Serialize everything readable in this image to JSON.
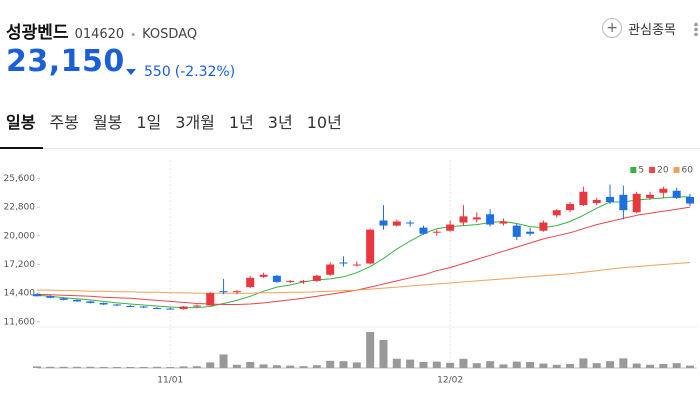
{
  "header": {
    "name": "성광벤드",
    "code": "014620",
    "market": "KOSDAQ",
    "favorite": "관심종목",
    "price": "23,150",
    "change": "550",
    "change_pct": "(-2.32%)"
  },
  "tabs": [
    "일봉",
    "주봉",
    "월봉",
    "1일",
    "3개월",
    "1년",
    "3년",
    "10년"
  ],
  "chart_data": {
    "type": "candlestick",
    "categories": [
      null,
      null,
      null,
      null,
      null,
      null,
      null,
      null,
      null,
      null,
      "11/01",
      null,
      null,
      null,
      null,
      null,
      null,
      null,
      null,
      null,
      null,
      null,
      null,
      null,
      null,
      null,
      null,
      null,
      null,
      null,
      null,
      "12/02",
      null,
      null,
      null,
      null,
      null,
      null,
      null,
      null,
      null,
      null,
      null,
      null,
      null,
      null,
      null,
      null,
      null,
      null
    ],
    "open": [
      14300,
      14100,
      13900,
      13750,
      13600,
      13450,
      13300,
      13150,
      13100,
      12950,
      12900,
      12850,
      13100,
      13200,
      14600,
      14500,
      15000,
      16000,
      16100,
      15500,
      15500,
      15600,
      16200,
      17400,
      17100,
      17300,
      21500,
      21000,
      21300,
      20800,
      20300,
      20500,
      21300,
      21600,
      22100,
      21200,
      21000,
      20400,
      20500,
      22000,
      22500,
      23000,
      23200,
      23800,
      24000,
      22300,
      23700,
      24200,
      24400,
      23800
    ],
    "high": [
      14400,
      14200,
      14000,
      13800,
      13650,
      13500,
      13350,
      13250,
      13150,
      13050,
      13000,
      13150,
      13300,
      14500,
      15800,
      14700,
      16100,
      16400,
      16200,
      15700,
      15700,
      16200,
      17400,
      18000,
      17500,
      20700,
      23000,
      21600,
      21500,
      21000,
      20600,
      21500,
      23000,
      22300,
      22600,
      21700,
      21200,
      20800,
      21500,
      22600,
      23300,
      24800,
      23700,
      25000,
      24900,
      24300,
      24300,
      24800,
      24700,
      24100
    ],
    "low": [
      14100,
      13900,
      13700,
      13550,
      13400,
      13250,
      13150,
      13050,
      12950,
      12850,
      12800,
      12800,
      13000,
      13200,
      14300,
      14300,
      14900,
      15900,
      15400,
      15400,
      15300,
      15500,
      16100,
      17000,
      17000,
      17200,
      20600,
      20900,
      20900,
      20100,
      20000,
      20400,
      21000,
      21300,
      20900,
      21000,
      19600,
      20000,
      20400,
      21800,
      22300,
      22900,
      23000,
      23100,
      21600,
      22200,
      23500,
      23700,
      23600,
      22900
    ],
    "close": [
      14100,
      13950,
      13750,
      13600,
      13450,
      13300,
      13200,
      13100,
      13000,
      12900,
      12850,
      13100,
      13200,
      14400,
      14500,
      14600,
      15900,
      16200,
      15500,
      15600,
      15600,
      16100,
      17200,
      17300,
      17200,
      20600,
      21000,
      21400,
      21200,
      20200,
      20400,
      21100,
      21900,
      21800,
      21100,
      21400,
      19900,
      20200,
      21300,
      22500,
      23100,
      24300,
      23500,
      23300,
      22500,
      24100,
      24000,
      24600,
      23700,
      23150
    ],
    "up_color": "#e8373e",
    "down_color": "#1e6fe0",
    "lines": [
      {
        "name": "5",
        "color": "#3cb043",
        "values": [
          14200,
          14100,
          13950,
          13850,
          13750,
          13600,
          13450,
          13350,
          13250,
          13150,
          13050,
          13000,
          13000,
          13100,
          13400,
          13700,
          14100,
          14600,
          15000,
          15200,
          15500,
          15700,
          15800,
          16000,
          16400,
          17000,
          17800,
          18700,
          19500,
          20200,
          20700,
          20900,
          21000,
          21100,
          21300,
          21400,
          21200,
          20900,
          20800,
          21000,
          21400,
          22000,
          22700,
          23300,
          23300,
          23500,
          23600,
          23700,
          23800,
          23800
        ]
      },
      {
        "name": "20",
        "color": "#e8474e",
        "values": [
          14300,
          14250,
          14200,
          14150,
          14100,
          14000,
          13950,
          13900,
          13800,
          13700,
          13600,
          13500,
          13400,
          13350,
          13300,
          13300,
          13350,
          13450,
          13600,
          13750,
          13900,
          14100,
          14300,
          14500,
          14700,
          15000,
          15300,
          15600,
          15900,
          16200,
          16600,
          16900,
          17300,
          17700,
          18100,
          18500,
          18900,
          19300,
          19700,
          20000,
          20300,
          20700,
          21100,
          21400,
          21700,
          22000,
          22200,
          22400,
          22600,
          22800
        ]
      },
      {
        "name": "60",
        "color": "#f0a05a",
        "values": [
          14700,
          14700,
          14650,
          14650,
          14600,
          14600,
          14550,
          14550,
          14500,
          14500,
          14450,
          14450,
          14400,
          14400,
          14400,
          14400,
          14400,
          14450,
          14450,
          14500,
          14500,
          14550,
          14600,
          14650,
          14700,
          14800,
          14900,
          15000,
          15100,
          15200,
          15300,
          15400,
          15500,
          15600,
          15700,
          15800,
          15900,
          16000,
          16100,
          16200,
          16300,
          16450,
          16600,
          16750,
          16900,
          17000,
          17100,
          17200,
          17300,
          17400
        ]
      }
    ],
    "volume": {
      "color": "#999999",
      "ylim": [
        0,
        1000
      ],
      "values": [
        40,
        30,
        30,
        30,
        30,
        25,
        25,
        25,
        25,
        30,
        25,
        40,
        45,
        140,
        340,
        80,
        150,
        90,
        70,
        60,
        45,
        70,
        180,
        170,
        140,
        900,
        700,
        230,
        210,
        150,
        160,
        130,
        230,
        120,
        170,
        90,
        160,
        150,
        110,
        80,
        100,
        240,
        120,
        170,
        240,
        110,
        80,
        100,
        120,
        60
      ]
    },
    "ylim": [
      11200,
      27400
    ],
    "yticks": [
      {
        "value": 11600,
        "label": "11,600"
      },
      {
        "value": 14400,
        "label": "14,400"
      },
      {
        "value": 17200,
        "label": "17,200"
      },
      {
        "value": 20000,
        "label": "20,000"
      },
      {
        "value": 22800,
        "label": "22,800"
      },
      {
        "value": 25600,
        "label": "25,600"
      }
    ],
    "legend": "top-right"
  }
}
